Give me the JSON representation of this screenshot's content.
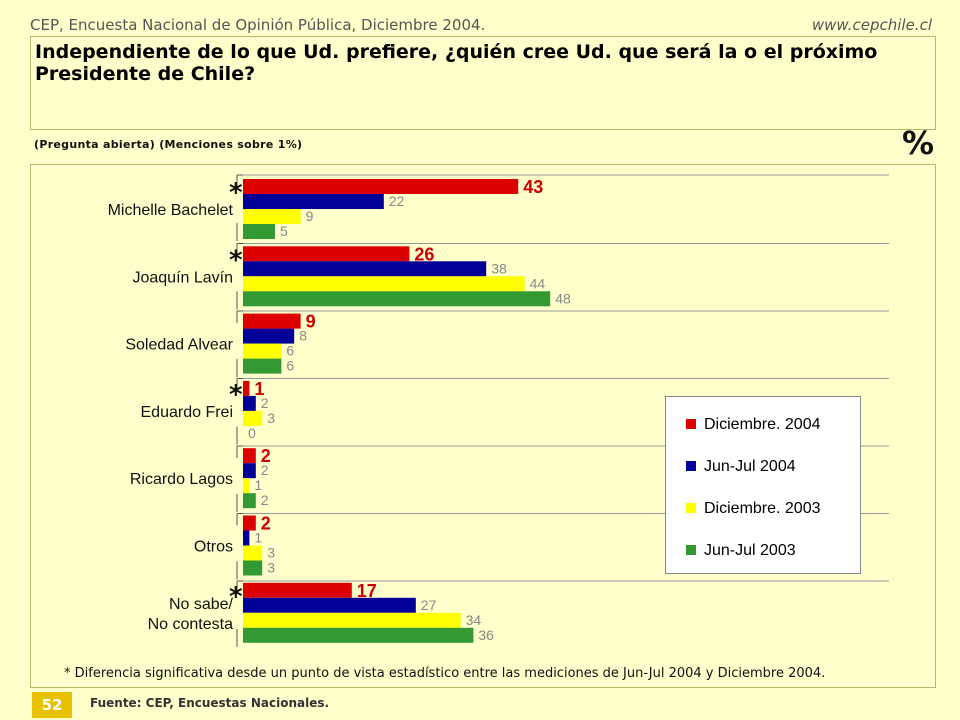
{
  "header": {
    "left": "CEP, Encuesta Nacional de Opinión Pública, Diciembre 2004.",
    "right": "www.cepchile.cl"
  },
  "title": "Independiente de lo que Ud. prefiere, ¿quién cree Ud. que será la o el próximo Presidente de Chile?",
  "subtitle": "(Pregunta abierta)  (Menciones sobre 1%)",
  "percent_sign": "%",
  "footnote": "* Diferencia significativa desde un punto de vista estadístico entre las mediciones de Jun-Jul 2004 y Diciembre 2004.",
  "page_number": "52",
  "source": "Fuente: CEP, Encuestas Nacionales.",
  "colors": {
    "dic2004": "#dd0000",
    "junjul2004": "#000099",
    "dic2003": "#ffff00",
    "junjul2003": "#339933",
    "highlight_label": "#cc0000",
    "other_label": "#888888"
  },
  "chart_data": {
    "type": "bar",
    "orientation": "horizontal",
    "categories": [
      "Michelle Bachelet",
      "Joaquín Lavín",
      "Soledad Alvear",
      "Eduardo Frei",
      "Ricardo Lagos",
      "Otros",
      "No sabe/\nNo contesta"
    ],
    "significant": [
      true,
      true,
      false,
      true,
      false,
      false,
      true
    ],
    "series": [
      {
        "name": "Diciembre. 2004",
        "values": [
          43,
          26,
          9,
          1,
          2,
          2,
          17
        ]
      },
      {
        "name": "Jun-Jul 2004",
        "values": [
          22,
          38,
          8,
          2,
          2,
          1,
          27
        ]
      },
      {
        "name": "Diciembre. 2003",
        "values": [
          9,
          44,
          6,
          3,
          1,
          3,
          34
        ]
      },
      {
        "name": "Jun-Jul 2003",
        "values": [
          5,
          48,
          6,
          0,
          2,
          3,
          36
        ]
      }
    ],
    "legend_position": "bottom-right",
    "grid": true
  }
}
